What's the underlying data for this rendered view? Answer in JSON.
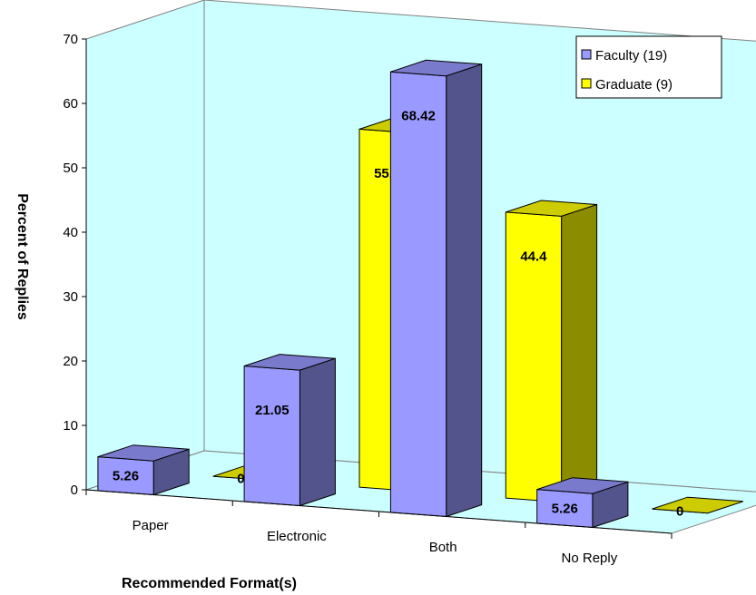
{
  "chart_data": {
    "type": "bar",
    "title": "",
    "xlabel": "Recommended Format(s)",
    "ylabel": "Percent of Replies",
    "categories": [
      "Paper",
      "Electronic",
      "Both",
      "No Reply"
    ],
    "series": [
      {
        "name": "Faculty (19)",
        "values": [
          5.26,
          21.05,
          68.42,
          5.26
        ],
        "labels": [
          "5.26",
          "21.05",
          "68.42",
          "5.26"
        ],
        "color": "#9999ff"
      },
      {
        "name": "Graduate (9)",
        "values": [
          0,
          55.6,
          44.4,
          0
        ],
        "labels": [
          "0",
          "55.6",
          "44.4",
          "0"
        ],
        "color": "#ffff00"
      }
    ],
    "ylim": [
      0,
      70
    ],
    "yticks": [
      0,
      10,
      20,
      30,
      40,
      50,
      60,
      70
    ],
    "grid": false,
    "legend": "top-right",
    "style": "3d-column",
    "colors": {
      "wall": "#ccffff",
      "outline": "#000000"
    }
  }
}
